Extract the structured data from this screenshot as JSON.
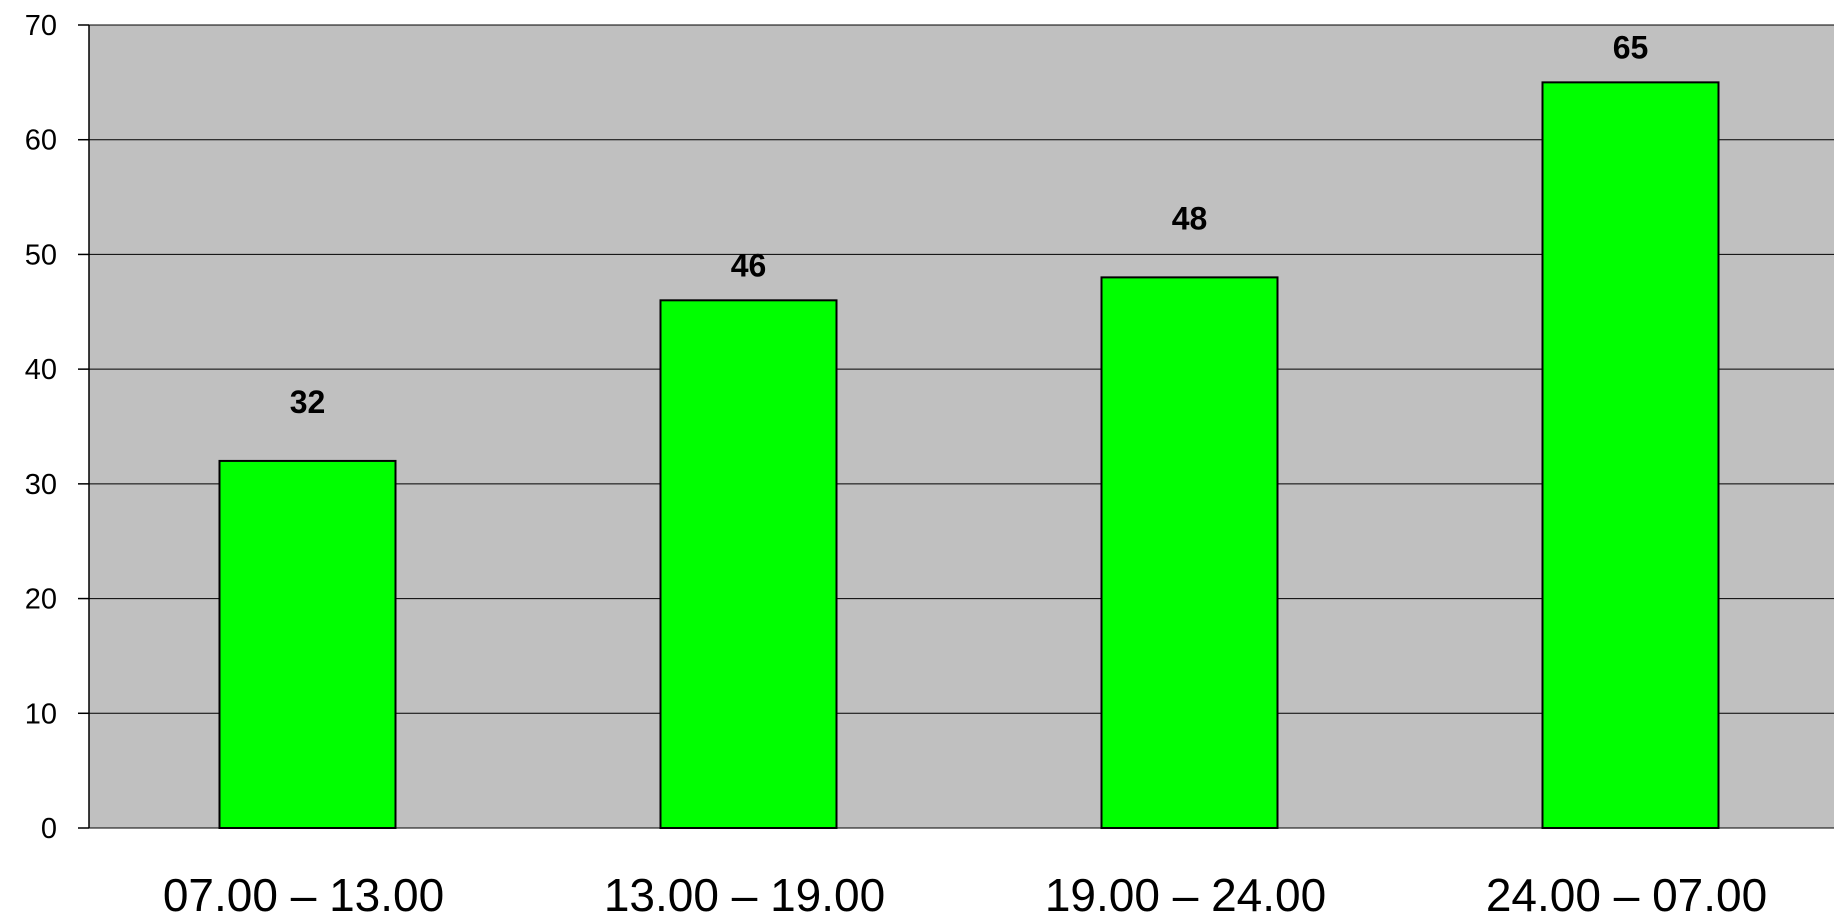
{
  "chart_data": {
    "type": "bar",
    "categories": [
      "07.00 – 13.00",
      "13.00 – 19.00",
      "19.00 – 24.00",
      "24.00 – 07.00"
    ],
    "values": [
      32,
      46,
      48,
      65
    ],
    "data_labels": [
      "32",
      "46",
      "48",
      "65"
    ],
    "ylim": [
      0,
      70
    ],
    "yticks": [
      "0",
      "10",
      "20",
      "30",
      "40",
      "50",
      "60",
      "70"
    ],
    "grid": true,
    "legend": "none",
    "colors": {
      "bar": "#00ff00",
      "bar_border": "#000000",
      "plot_background": "#c0c0c0",
      "gridline": "#000000"
    }
  }
}
